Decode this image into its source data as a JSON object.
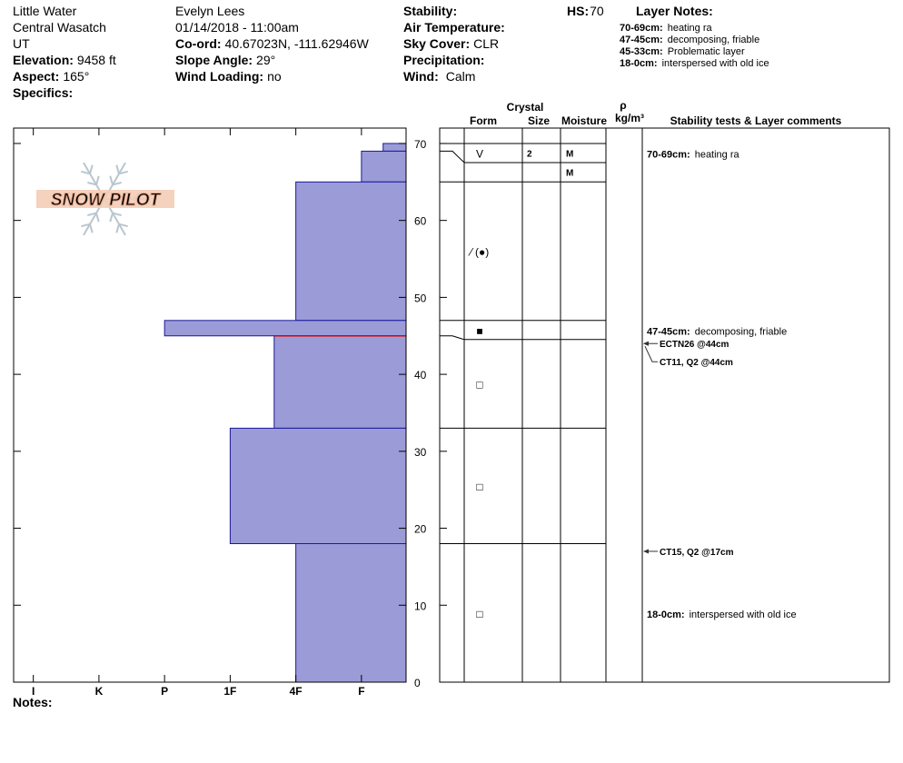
{
  "header": {
    "location": [
      "Little Water",
      "Central Wasatch",
      "UT"
    ],
    "elevation": {
      "label": "Elevation:",
      "value": "9458 ft"
    },
    "aspect": {
      "label": "Aspect:",
      "value": "165°"
    },
    "specifics": {
      "label": "Specifics:"
    },
    "observer": "Evelyn Lees",
    "datetime": "01/14/2018 - 11:00am",
    "coord": {
      "label": "Co-ord:",
      "value": "40.67023N, -111.62946W"
    },
    "slope_angle": {
      "label": "Slope Angle:",
      "value": "29°"
    },
    "wind_loading": {
      "label": "Wind Loading:",
      "value": "no"
    },
    "stability": {
      "label": "Stability:"
    },
    "air_temperature": {
      "label": "Air Temperature:"
    },
    "sky_cover": {
      "label": "Sky Cover:",
      "value": "CLR"
    },
    "precipitation": {
      "label": "Precipitation:"
    },
    "wind": {
      "label": "Wind:",
      "value": "Calm"
    },
    "hs": {
      "label": "HS:",
      "value": "70"
    },
    "layer_notes": {
      "title": "Layer Notes:",
      "items": [
        {
          "range": "70-69cm:",
          "text": "heating ra"
        },
        {
          "range": "47-45cm:",
          "text": "decomposing, friable"
        },
        {
          "range": "45-33cm:",
          "text": "Problematic layer"
        },
        {
          "range": "18-0cm:",
          "text": "interspersed with old ice"
        }
      ]
    }
  },
  "logo": "SNOW PILOT",
  "notes": {
    "label": "Notes:"
  },
  "chart_data": {
    "type": "snow-profile",
    "ylim": [
      0,
      72
    ],
    "yticks": [
      0,
      10,
      20,
      30,
      40,
      50,
      60,
      70
    ],
    "xlim": [
      6.3,
      0.32
    ],
    "xticks": [
      {
        "value": 6,
        "label": "I"
      },
      {
        "value": 5,
        "label": "K"
      },
      {
        "value": 4,
        "label": "P"
      },
      {
        "value": 3,
        "label": "1F"
      },
      {
        "value": 2,
        "label": "4F"
      },
      {
        "value": 1,
        "label": "F"
      }
    ],
    "color": "#9b9bd8",
    "critical_depth": 45,
    "table_headers": {
      "crystal": "Crystal",
      "form": "Form",
      "size": "Size",
      "moisture": "Moisture",
      "density_symbol": "ρ",
      "density_unit": "kg/m³",
      "comments": "Stability tests & Layer comments"
    },
    "layers": [
      {
        "top": 70,
        "bottom": 69,
        "hardness": 0.67,
        "form": "V",
        "size": "2",
        "moisture": "M"
      },
      {
        "top": 69,
        "bottom": 65,
        "hardness": 1,
        "moisture": "M"
      },
      {
        "top": 65,
        "bottom": 47,
        "hardness": 2,
        "form": "⁄ (●)"
      },
      {
        "top": 47,
        "bottom": 45,
        "hardness": 4,
        "form": "■"
      },
      {
        "top": 45,
        "bottom": 33,
        "hardness": 2.33,
        "form": "□"
      },
      {
        "top": 33,
        "bottom": 18,
        "hardness": 3,
        "form": "□"
      },
      {
        "top": 18,
        "bottom": 0,
        "hardness": 2,
        "form": "□"
      }
    ],
    "comments": [
      {
        "range": "70-69cm:",
        "text": "heating ra",
        "top": 70,
        "bottom": 69
      },
      {
        "range": "47-45cm:",
        "text": "decomposing, friable",
        "top": 47,
        "bottom": 45
      },
      {
        "range": "18-0cm:",
        "text": "interspersed with old ice",
        "top": 18,
        "bottom": 0
      }
    ],
    "tests": [
      {
        "label": "ECTN26 @44cm",
        "depth": 44
      },
      {
        "label": "CT11, Q2 @44cm",
        "depth": 44
      },
      {
        "label": "CT15, Q2 @17cm",
        "depth": 17
      }
    ]
  }
}
